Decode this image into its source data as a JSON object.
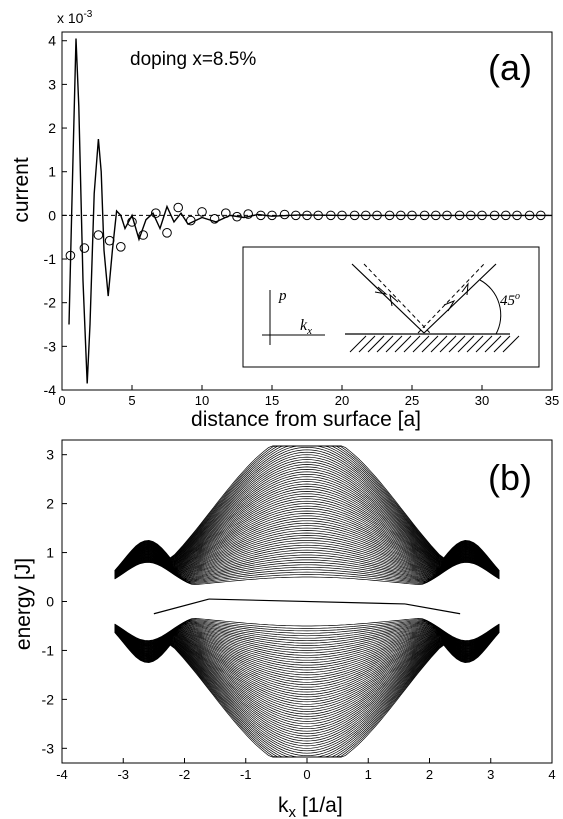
{
  "chart_data": [
    {
      "panel": "(a)",
      "type": "line",
      "annotation": "doping x=8.5%",
      "xlabel": "distance from surface [a]",
      "ylabel": "current",
      "y_multiplier": "x 10",
      "y_multiplier_exp": "-3",
      "xlim": [
        0,
        35
      ],
      "ylim": [
        -4,
        4.2
      ],
      "x_ticks": [
        0,
        5,
        10,
        15,
        20,
        25,
        30,
        35
      ],
      "y_ticks": [
        -4,
        -3,
        -2,
        -1,
        0,
        1,
        2,
        3,
        4
      ],
      "zero_line": "dashed",
      "series": [
        {
          "style": "solid-line",
          "x": [
            0.5,
            0.8,
            1.0,
            1.2,
            1.5,
            1.8,
            2.0,
            2.3,
            2.6,
            2.8,
            3.0,
            3.3,
            3.6,
            3.9,
            4.2,
            4.5,
            5.0,
            5.5,
            6.0,
            6.5,
            7.0,
            7.5,
            8.0,
            8.5,
            9.0,
            10,
            11,
            12,
            13,
            14,
            15,
            17,
            20,
            25,
            30,
            35
          ],
          "y": [
            -2.5,
            1.5,
            4.05,
            2.5,
            -1.5,
            -3.85,
            -2.5,
            0.5,
            1.75,
            1.0,
            -0.8,
            -1.85,
            -0.8,
            0.1,
            0.0,
            -0.3,
            0.0,
            -0.55,
            -0.1,
            0.05,
            -0.3,
            0.2,
            -0.15,
            0.05,
            -0.2,
            -0.05,
            -0.15,
            0.0,
            -0.05,
            0.02,
            -0.02,
            0.01,
            0.0,
            0.0,
            0.0,
            0.0
          ]
        },
        {
          "style": "open-circles",
          "x": [
            0.6,
            1.6,
            2.6,
            3.4,
            4.2,
            5.0,
            5.8,
            6.7,
            7.5,
            8.3,
            9.2,
            10.0,
            10.9,
            11.7,
            12.5,
            13.3,
            14.2,
            15.0,
            15.9,
            16.7,
            17.5,
            18.3,
            19.2,
            20.0,
            20.9,
            21.7,
            22.5,
            23.4,
            24.2,
            25.0,
            25.9,
            26.7,
            27.5,
            28.4,
            29.2,
            30.0,
            30.9,
            31.7,
            32.5,
            33.4,
            34.2
          ],
          "y": [
            -0.92,
            -0.75,
            -0.45,
            -0.58,
            -0.72,
            -0.15,
            -0.45,
            0.05,
            -0.4,
            0.18,
            -0.12,
            0.08,
            -0.08,
            0.05,
            -0.03,
            0.03,
            0.0,
            0.0,
            0.02,
            0.0,
            0.0,
            0.0,
            0.0,
            0.0,
            0.0,
            0.0,
            0.0,
            0.0,
            0.0,
            0.0,
            0.0,
            0.0,
            0.0,
            0.0,
            0.0,
            0.0,
            0.0,
            0.0,
            0.0,
            0.0,
            0.0
          ]
        }
      ],
      "inset": {
        "p_label": "p",
        "kx_label": "k",
        "kx_sub": "x",
        "angle_label": "45",
        "angle_sup": "o"
      }
    },
    {
      "panel": "(b)",
      "type": "line",
      "xlabel": "k",
      "xlabel_sub": "x",
      "xlabel_rest": " [1/a]",
      "ylabel": "energy [J]",
      "xlim": [
        -4,
        4
      ],
      "ylim": [
        -3.3,
        3.3
      ],
      "x_ticks": [
        -4,
        -3,
        -2,
        -1,
        0,
        1,
        2,
        3,
        4
      ],
      "y_ticks": [
        -3,
        -2,
        -1,
        0,
        1,
        2,
        3
      ],
      "description_of_bands": "many dense energy bands spanning k from -3.14 to 3.14",
      "band_count": 60,
      "band_k_range": [
        -3.14,
        3.14
      ],
      "band_center_energy": [
        3.2,
        -3.2
      ],
      "band_edge_energy": [
        0.9,
        -0.9
      ],
      "surface_states": [
        {
          "k": [
            -2.5,
            -1.6
          ],
          "e": [
            -0.25,
            0.05
          ]
        },
        {
          "k": [
            -1.6,
            1.6
          ],
          "e": [
            0.05,
            -0.05
          ]
        },
        {
          "k": [
            1.6,
            2.5
          ],
          "e": [
            -0.05,
            -0.25
          ]
        }
      ]
    }
  ]
}
